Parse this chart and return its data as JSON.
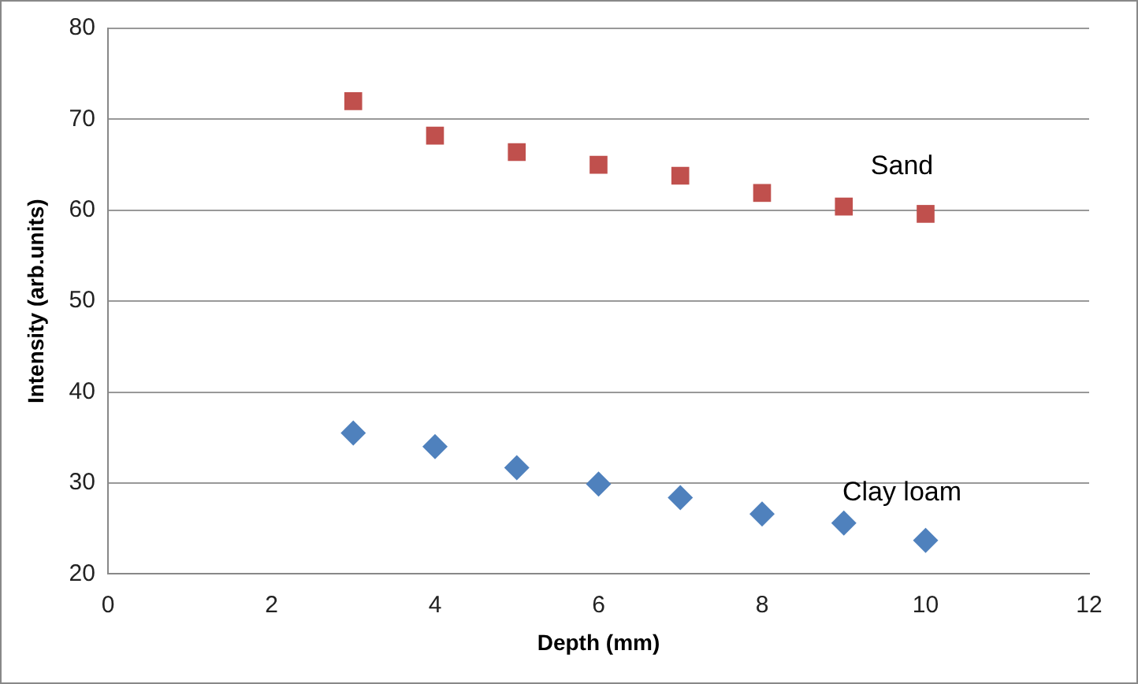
{
  "chart_data": {
    "type": "scatter",
    "xlabel": "Depth (mm)",
    "ylabel": "Intensity (arb.units)",
    "x": [
      3,
      4,
      5,
      6,
      7,
      8,
      9,
      10
    ],
    "series": [
      {
        "name": "Sand",
        "color": "#c0504d",
        "marker": "square",
        "values": [
          72,
          68.2,
          66.4,
          65,
          63.8,
          61.9,
          60.4,
          59.6
        ]
      },
      {
        "name": "Clay loam",
        "color": "#4f81bd",
        "marker": "diamond",
        "values": [
          35.5,
          34,
          31.7,
          29.9,
          28.4,
          26.6,
          25.6,
          23.7
        ]
      }
    ],
    "xlim": [
      0,
      12
    ],
    "xticks": [
      0,
      2,
      4,
      6,
      8,
      10,
      12
    ],
    "ylim": [
      20,
      80
    ],
    "yticks": [
      20,
      30,
      40,
      50,
      60,
      70,
      80
    ],
    "grid": "y",
    "legend": false
  }
}
